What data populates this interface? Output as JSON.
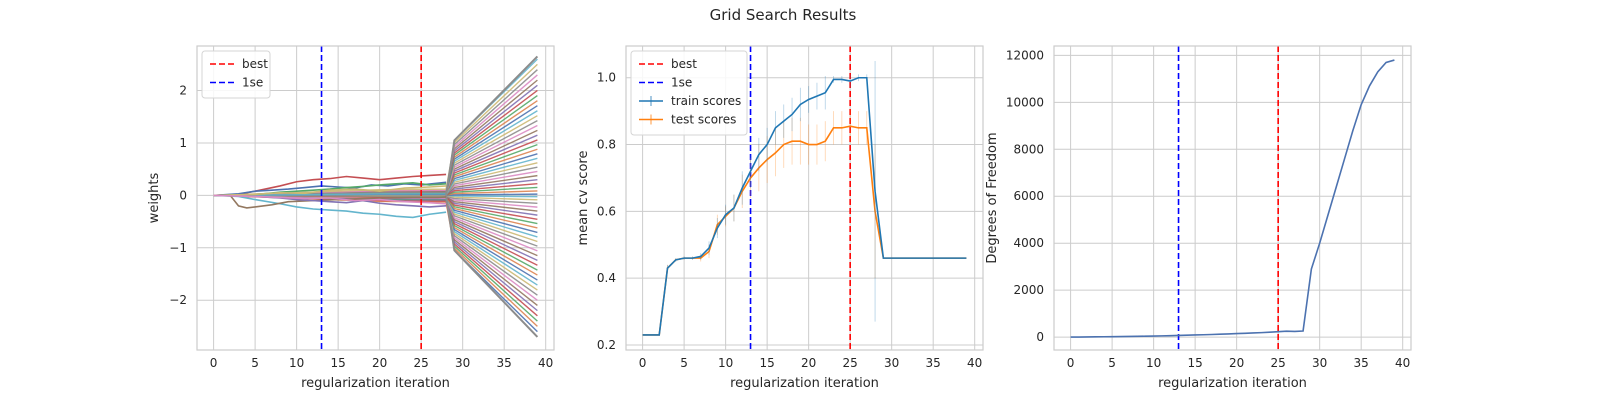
{
  "figure": {
    "title": "Grid Search Results"
  },
  "colors": {
    "best": "#ff0000",
    "one_se": "#0000ff",
    "train": "#1f77b4",
    "test": "#ff7f0e",
    "dof": "#4c72b0",
    "grid": "#cccccc",
    "axes_edge": "#cccccc",
    "weight_palette": [
      "#4c72b0",
      "#dd8452",
      "#55a868",
      "#c44e52",
      "#8172b3",
      "#937860",
      "#da8bc3",
      "#8c8c8c",
      "#ccb974",
      "#64b5cd"
    ]
  },
  "chart_data": [
    {
      "type": "line",
      "id": "weights",
      "title": "",
      "xlabel": "regularization iteration",
      "ylabel": "weights",
      "xlim": [
        -2,
        41
      ],
      "ylim": [
        -2.95,
        2.85
      ],
      "xticks": [
        0,
        5,
        10,
        15,
        20,
        25,
        30,
        35,
        40
      ],
      "yticks": [
        -2,
        -1,
        0,
        1,
        2
      ],
      "ytick_labels": [
        "−2",
        "−1",
        "0",
        "1",
        "2"
      ],
      "grid": true,
      "legend": {
        "placement": "top-left",
        "entries": [
          {
            "label": "best",
            "style": "dashed",
            "color": "#ff0000"
          },
          {
            "label": "1se",
            "style": "dashed",
            "color": "#0000ff"
          }
        ]
      },
      "vlines": [
        {
          "name": "best",
          "x": 25,
          "color": "#ff0000"
        },
        {
          "name": "1se",
          "x": 13,
          "color": "#0000ff"
        }
      ],
      "fan": {
        "x_start": 0,
        "x_split": 28,
        "x_jump": 29,
        "x_end": 39,
        "max_abs_at_jump": 1.05,
        "max_abs_at_end": 2.6,
        "line_count": 60
      },
      "series": [
        {
          "color": "#c44e52",
          "x": [
            0,
            3,
            5,
            8,
            10,
            12,
            14,
            16,
            18,
            20,
            22,
            24,
            26,
            28
          ],
          "y": [
            0,
            0.02,
            0.08,
            0.18,
            0.26,
            0.3,
            0.32,
            0.36,
            0.33,
            0.3,
            0.33,
            0.36,
            0.38,
            0.4
          ]
        },
        {
          "color": "#64b5cd",
          "x": [
            0,
            3,
            5,
            8,
            10,
            12,
            14,
            16,
            18,
            20,
            22,
            24,
            26,
            28
          ],
          "y": [
            0,
            -0.02,
            -0.08,
            -0.16,
            -0.22,
            -0.26,
            -0.28,
            -0.3,
            -0.34,
            -0.36,
            -0.4,
            -0.42,
            -0.36,
            -0.32
          ]
        },
        {
          "color": "#937860",
          "x": [
            0,
            2,
            3,
            4,
            5,
            7,
            9,
            12,
            15,
            18,
            21,
            24,
            27,
            28
          ],
          "y": [
            0,
            0,
            -0.2,
            -0.24,
            -0.22,
            -0.18,
            -0.12,
            -0.1,
            -0.08,
            -0.06,
            -0.05,
            -0.04,
            -0.04,
            -0.03
          ]
        },
        {
          "color": "#4c72b0",
          "x": [
            0,
            3,
            5,
            7,
            9,
            11,
            13,
            15,
            17,
            19,
            21,
            23,
            25,
            28
          ],
          "y": [
            0,
            0.03,
            0.08,
            0.1,
            0.12,
            0.15,
            0.18,
            0.16,
            0.14,
            0.2,
            0.18,
            0.22,
            0.2,
            0.25
          ]
        },
        {
          "color": "#55a868",
          "x": [
            0,
            4,
            6,
            8,
            10,
            12,
            14,
            16,
            18,
            20,
            22,
            24,
            26,
            28
          ],
          "y": [
            0,
            0.01,
            0.03,
            0.06,
            0.08,
            0.1,
            0.12,
            0.15,
            0.17,
            0.2,
            0.22,
            0.24,
            0.2,
            0.22
          ]
        },
        {
          "color": "#8172b3",
          "x": [
            0,
            4,
            6,
            8,
            10,
            12,
            14,
            16,
            18,
            20,
            22,
            24,
            26,
            28
          ],
          "y": [
            0,
            -0.01,
            -0.03,
            -0.05,
            -0.08,
            -0.1,
            -0.12,
            -0.14,
            -0.1,
            -0.15,
            -0.18,
            -0.2,
            -0.22,
            -0.2
          ]
        },
        {
          "color": "#ccb974",
          "x": [
            0,
            5,
            8,
            11,
            14,
            17,
            20,
            23,
            26,
            28
          ],
          "y": [
            0,
            0.02,
            0.05,
            0.04,
            0.1,
            0.12,
            0.08,
            0.14,
            0.16,
            0.18
          ]
        },
        {
          "color": "#da8bc3",
          "x": [
            0,
            5,
            8,
            11,
            14,
            17,
            20,
            23,
            26,
            28
          ],
          "y": [
            0,
            -0.02,
            -0.04,
            -0.06,
            -0.05,
            -0.1,
            -0.08,
            -0.12,
            -0.14,
            -0.16
          ]
        }
      ]
    },
    {
      "type": "line",
      "id": "cv_scores",
      "title": "",
      "xlabel": "regularization iteration",
      "ylabel": "mean cv score",
      "xlim": [
        -2,
        41
      ],
      "ylim": [
        0.185,
        1.095
      ],
      "xticks": [
        0,
        5,
        10,
        15,
        20,
        25,
        30,
        35,
        40
      ],
      "yticks": [
        0.2,
        0.4,
        0.6,
        0.8,
        1.0
      ],
      "ytick_labels": [
        "0.2",
        "0.4",
        "0.6",
        "0.8",
        "1.0"
      ],
      "grid": true,
      "legend": {
        "placement": "top-left",
        "entries": [
          {
            "label": "best",
            "style": "dashed",
            "color": "#ff0000"
          },
          {
            "label": "1se",
            "style": "dashed",
            "color": "#0000ff"
          },
          {
            "label": "train scores",
            "style": "errorbar",
            "color": "#1f77b4"
          },
          {
            "label": "test scores",
            "style": "errorbar",
            "color": "#ff7f0e"
          }
        ]
      },
      "vlines": [
        {
          "name": "best",
          "x": 25,
          "color": "#ff0000"
        },
        {
          "name": "1se",
          "x": 13,
          "color": "#0000ff"
        }
      ],
      "x": [
        0,
        1,
        2,
        3,
        4,
        5,
        6,
        7,
        8,
        9,
        10,
        11,
        12,
        13,
        14,
        15,
        16,
        17,
        18,
        19,
        20,
        21,
        22,
        23,
        24,
        25,
        26,
        27,
        28,
        29,
        30,
        31,
        32,
        33,
        34,
        35,
        36,
        37,
        38,
        39
      ],
      "series": [
        {
          "name": "train scores",
          "color": "#1f77b4",
          "values": [
            0.23,
            0.23,
            0.23,
            0.43,
            0.455,
            0.46,
            0.46,
            0.465,
            0.49,
            0.55,
            0.59,
            0.61,
            0.67,
            0.72,
            0.77,
            0.8,
            0.85,
            0.87,
            0.89,
            0.92,
            0.935,
            0.945,
            0.955,
            0.995,
            0.995,
            0.99,
            1.0,
            1.0,
            0.66,
            0.46,
            0.46,
            0.46,
            0.46,
            0.46,
            0.46,
            0.46,
            0.46,
            0.46,
            0.46,
            0.46
          ],
          "err": [
            0,
            0,
            0,
            0.01,
            0.005,
            0.005,
            0.005,
            0.01,
            0.02,
            0.03,
            0.03,
            0.04,
            0.05,
            0.05,
            0.05,
            0.05,
            0.05,
            0.05,
            0.05,
            0.05,
            0.04,
            0.04,
            0.05,
            0.01,
            0.01,
            0.02,
            0.01,
            0.01,
            0.39,
            0,
            0,
            0,
            0,
            0,
            0,
            0,
            0,
            0,
            0,
            0
          ]
        },
        {
          "name": "test scores",
          "color": "#ff7f0e",
          "values": [
            0.23,
            0.23,
            0.23,
            0.43,
            0.455,
            0.46,
            0.46,
            0.46,
            0.48,
            0.56,
            0.585,
            0.61,
            0.66,
            0.7,
            0.73,
            0.755,
            0.775,
            0.8,
            0.81,
            0.81,
            0.8,
            0.8,
            0.81,
            0.85,
            0.85,
            0.855,
            0.85,
            0.85,
            0.6,
            0.46,
            0.46,
            0.46,
            0.46,
            0.46,
            0.46,
            0.46,
            0.46,
            0.46,
            0.46,
            0.46
          ],
          "err": [
            0,
            0,
            0,
            0.01,
            0.005,
            0.005,
            0.005,
            0.01,
            0.02,
            0.03,
            0.03,
            0.04,
            0.05,
            0.06,
            0.07,
            0.07,
            0.07,
            0.07,
            0.07,
            0.07,
            0.06,
            0.06,
            0.06,
            0.05,
            0.05,
            0.05,
            0.05,
            0.05,
            0.2,
            0,
            0,
            0,
            0,
            0,
            0,
            0,
            0,
            0,
            0,
            0
          ]
        }
      ]
    },
    {
      "type": "line",
      "id": "dof",
      "title": "",
      "xlabel": "regularization iteration",
      "ylabel": "Degrees of Freedom",
      "xlim": [
        -2,
        41
      ],
      "ylim": [
        -550,
        12400
      ],
      "xticks": [
        0,
        5,
        10,
        15,
        20,
        25,
        30,
        35,
        40
      ],
      "yticks": [
        0,
        2000,
        4000,
        6000,
        8000,
        10000,
        12000
      ],
      "ytick_labels": [
        "0",
        "2000",
        "4000",
        "6000",
        "8000",
        "10000",
        "12000"
      ],
      "grid": true,
      "legend": null,
      "vlines": [
        {
          "name": "best",
          "x": 25,
          "color": "#ff0000"
        },
        {
          "name": "1se",
          "x": 13,
          "color": "#0000ff"
        }
      ],
      "x": [
        0,
        1,
        2,
        3,
        4,
        5,
        6,
        7,
        8,
        9,
        10,
        11,
        12,
        13,
        14,
        15,
        16,
        17,
        18,
        19,
        20,
        21,
        22,
        23,
        24,
        25,
        26,
        27,
        28,
        29,
        30,
        31,
        32,
        33,
        34,
        35,
        36,
        37,
        38,
        39
      ],
      "series": [
        {
          "color": "#4c72b0",
          "values": [
            0,
            3,
            6,
            10,
            14,
            18,
            22,
            26,
            32,
            38,
            45,
            52,
            60,
            70,
            80,
            90,
            100,
            110,
            122,
            135,
            148,
            160,
            175,
            190,
            210,
            230,
            250,
            240,
            260,
            2900,
            4000,
            5200,
            6400,
            7600,
            8800,
            9900,
            10700,
            11300,
            11700,
            11800
          ]
        }
      ]
    }
  ]
}
